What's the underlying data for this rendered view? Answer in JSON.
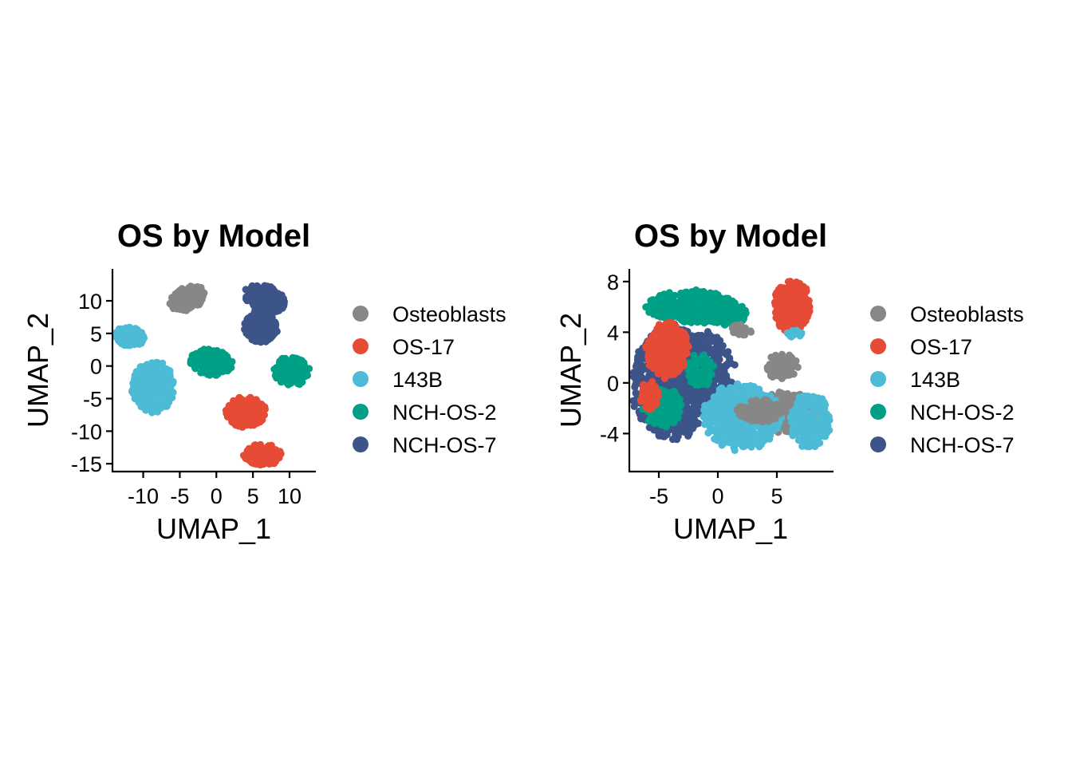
{
  "colors": {
    "Osteoblasts": "#878787",
    "OS-17": "#E64B35",
    "143B": "#4DBBD5",
    "NCH-OS-2": "#00A087",
    "NCH-OS-7": "#3C5488"
  },
  "chart_data": [
    {
      "type": "scatter",
      "title": "OS by Model",
      "xlabel": "UMAP_1",
      "ylabel": "UMAP_2",
      "xlim": [
        -14.2,
        13.6
      ],
      "ylim": [
        -16.2,
        14.9
      ],
      "xticks": [
        -10,
        -5,
        0,
        5,
        10
      ],
      "xtick_labels": [
        "-10",
        "-5",
        "0",
        "5",
        "10"
      ],
      "yticks": [
        10,
        5,
        0,
        -5,
        -10,
        -15
      ],
      "ytick_labels": [
        "10",
        "5",
        "0",
        "-5",
        "-10",
        "-15"
      ],
      "grid": false,
      "legend_position": "right",
      "legend": [
        "Osteoblasts",
        "OS-17",
        "143B",
        "NCH-OS-2",
        "NCH-OS-7"
      ],
      "clusters": [
        {
          "series": "Osteoblasts",
          "cx": -4.0,
          "cy": 10.3,
          "rx": 2.6,
          "ry": 1.7,
          "rot": 30,
          "n": 180
        },
        {
          "series": "143B",
          "cx": -11.8,
          "cy": 4.5,
          "rx": 2.0,
          "ry": 1.5,
          "rot": -15,
          "n": 130
        },
        {
          "series": "143B",
          "cx": -8.6,
          "cy": -3.2,
          "rx": 2.9,
          "ry": 3.9,
          "rot": 0,
          "n": 320
        },
        {
          "series": "NCH-OS-2",
          "cx": -0.8,
          "cy": 0.6,
          "rx": 2.9,
          "ry": 2.0,
          "rot": -10,
          "n": 220
        },
        {
          "series": "NCH-OS-2",
          "cx": 10.3,
          "cy": -0.8,
          "rx": 2.4,
          "ry": 2.2,
          "rot": 0,
          "n": 190
        },
        {
          "series": "OS-17",
          "cx": 4.0,
          "cy": -7.1,
          "rx": 2.8,
          "ry": 2.3,
          "rot": 0,
          "n": 230
        },
        {
          "series": "OS-17",
          "cx": 6.3,
          "cy": -13.6,
          "rx": 2.6,
          "ry": 1.6,
          "rot": 0,
          "n": 170
        },
        {
          "series": "NCH-OS-7",
          "cx": 6.6,
          "cy": 10.3,
          "rx": 2.9,
          "ry": 2.0,
          "rot": -25,
          "n": 220
        },
        {
          "series": "NCH-OS-7",
          "cx": 6.1,
          "cy": 6.0,
          "rx": 2.3,
          "ry": 2.4,
          "rot": 0,
          "n": 190
        }
      ]
    },
    {
      "type": "scatter",
      "title": "OS by Model",
      "xlabel": "UMAP_1",
      "ylabel": "UMAP_2",
      "xlim": [
        -7.5,
        9.8
      ],
      "ylim": [
        -7.0,
        9.0
      ],
      "xticks": [
        -5,
        0,
        5
      ],
      "xtick_labels": [
        "-5",
        "0",
        "5"
      ],
      "yticks": [
        8,
        4,
        0,
        -4
      ],
      "ytick_labels": [
        "8",
        "4",
        "0",
        "-4"
      ],
      "grid": false,
      "legend_position": "right",
      "legend": [
        "Osteoblasts",
        "OS-17",
        "143B",
        "NCH-OS-2",
        "NCH-OS-7"
      ],
      "clusters": [
        {
          "series": "NCH-OS-7",
          "cx": -4.0,
          "cy": 0.0,
          "rx": 3.3,
          "ry": 4.6,
          "rot": 0,
          "n": 700
        },
        {
          "series": "NCH-OS-7",
          "cx": -1.2,
          "cy": 1.2,
          "rx": 2.6,
          "ry": 3.0,
          "rot": 0,
          "n": 320
        },
        {
          "series": "NCH-OS-2",
          "cx": -2.2,
          "cy": 6.0,
          "rx": 3.8,
          "ry": 1.3,
          "rot": 0,
          "n": 380
        },
        {
          "series": "NCH-OS-2",
          "cx": 0.9,
          "cy": 5.4,
          "rx": 1.6,
          "ry": 0.9,
          "rot": 0,
          "n": 90
        },
        {
          "series": "NCH-OS-2",
          "cx": -4.8,
          "cy": -1.9,
          "rx": 1.7,
          "ry": 1.6,
          "rot": 0,
          "n": 150
        },
        {
          "series": "NCH-OS-2",
          "cx": -1.5,
          "cy": 1.0,
          "rx": 1.2,
          "ry": 1.3,
          "rot": 0,
          "n": 80
        },
        {
          "series": "OS-17",
          "cx": -4.3,
          "cy": 2.6,
          "rx": 1.8,
          "ry": 2.2,
          "rot": 0,
          "n": 280
        },
        {
          "series": "OS-17",
          "cx": -5.8,
          "cy": -1.0,
          "rx": 0.8,
          "ry": 1.2,
          "rot": 0,
          "n": 60
        },
        {
          "series": "OS-17",
          "cx": 6.3,
          "cy": 6.0,
          "rx": 1.6,
          "ry": 2.0,
          "rot": 0,
          "n": 260
        },
        {
          "series": "Osteoblasts",
          "cx": 5.5,
          "cy": -2.3,
          "rx": 2.9,
          "ry": 1.6,
          "rot": 0,
          "n": 260
        },
        {
          "series": "Osteoblasts",
          "cx": 5.4,
          "cy": 1.3,
          "rx": 1.4,
          "ry": 1.0,
          "rot": 0,
          "n": 110
        },
        {
          "series": "Osteoblasts",
          "cx": 2.0,
          "cy": 4.3,
          "rx": 0.9,
          "ry": 0.6,
          "rot": 0,
          "n": 30
        },
        {
          "series": "143B",
          "cx": 2.0,
          "cy": -2.7,
          "rx": 3.3,
          "ry": 2.6,
          "rot": 0,
          "n": 520
        },
        {
          "series": "143B",
          "cx": 7.8,
          "cy": -3.0,
          "rx": 1.7,
          "ry": 2.2,
          "rot": 0,
          "n": 200
        },
        {
          "series": "Osteoblasts",
          "cx": 3.6,
          "cy": -2.2,
          "rx": 2.0,
          "ry": 0.9,
          "rot": 0,
          "n": 160
        },
        {
          "series": "143B",
          "cx": 6.5,
          "cy": 3.9,
          "rx": 0.6,
          "ry": 0.4,
          "rot": 0,
          "n": 20
        }
      ]
    }
  ]
}
